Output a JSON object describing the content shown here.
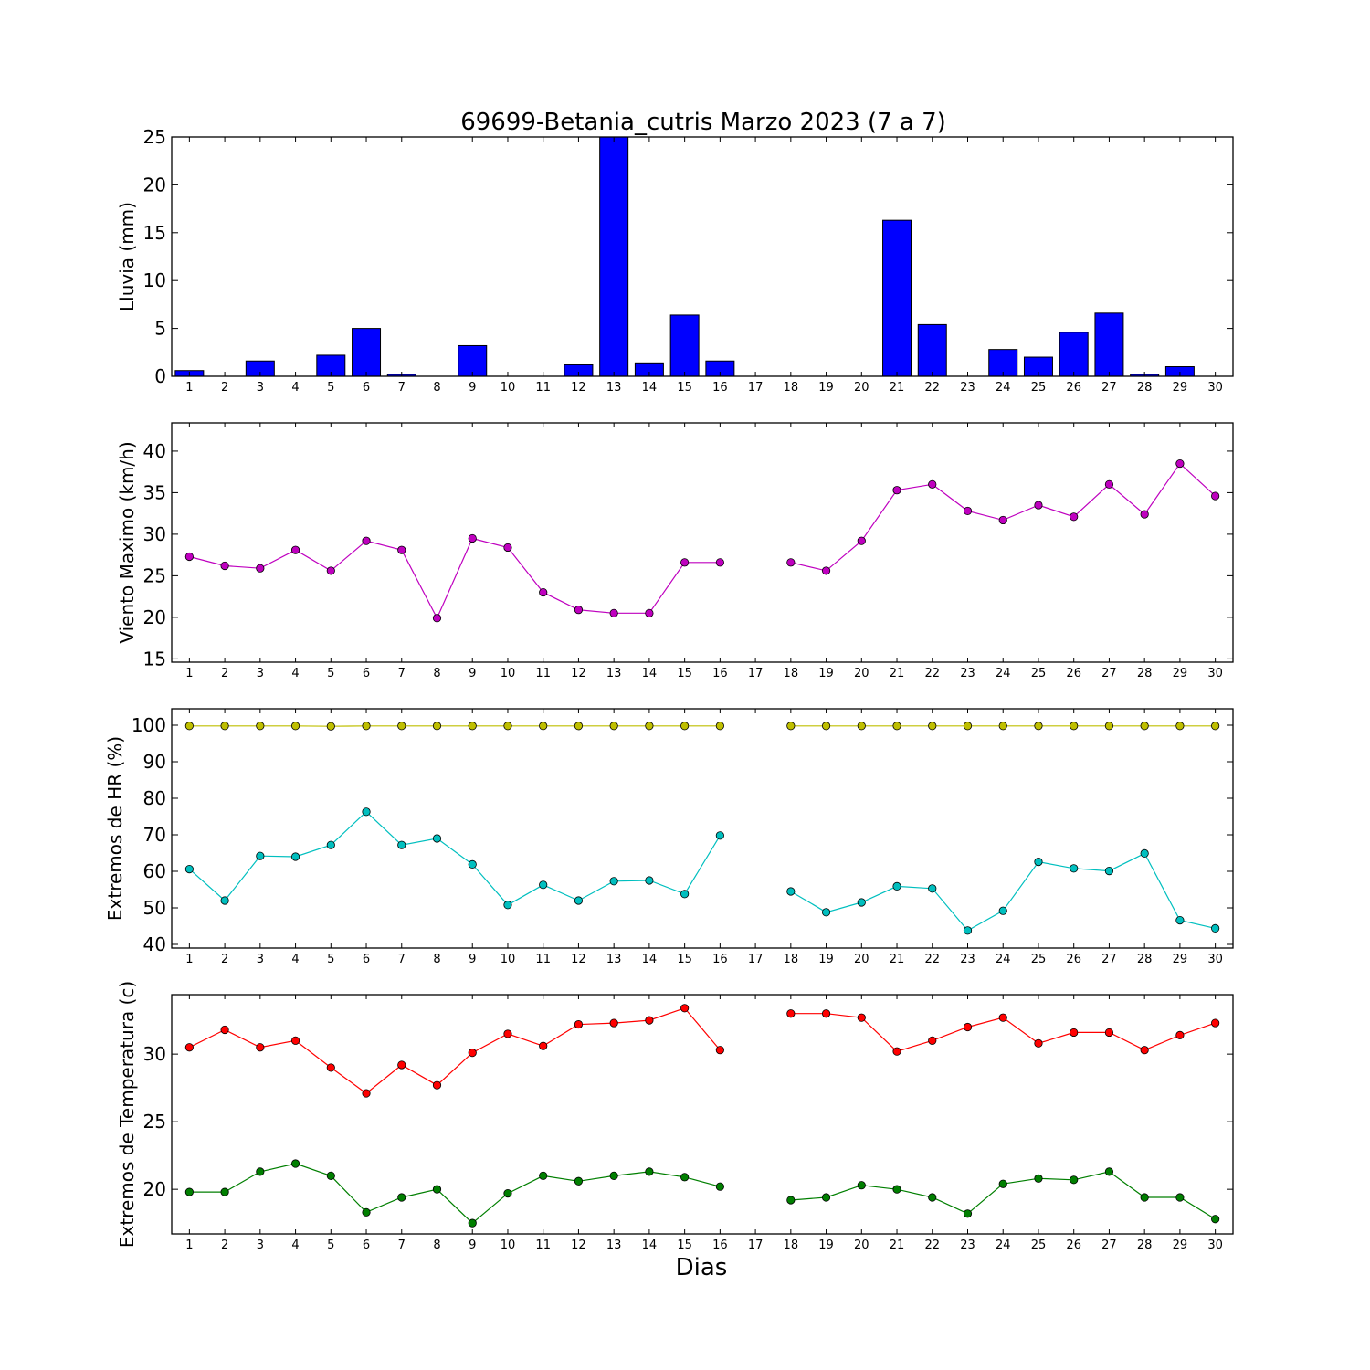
{
  "figure": {
    "title": "69699-Betania_cutris Marzo 2023  (7 a 7)",
    "xlabel": "Dias"
  },
  "chart_data": [
    {
      "type": "bar",
      "ylabel": "Lluvia (mm)",
      "ylim": [
        0,
        25
      ],
      "yticks": [
        0,
        5,
        10,
        15,
        20,
        25
      ],
      "x": [
        1,
        2,
        3,
        4,
        5,
        6,
        7,
        8,
        9,
        10,
        11,
        12,
        13,
        14,
        15,
        16,
        17,
        18,
        19,
        20,
        21,
        22,
        23,
        24,
        25,
        26,
        27,
        28,
        29,
        30
      ],
      "series": [
        {
          "color": "#0000ff",
          "values": [
            0.6,
            0,
            1.6,
            0,
            2.2,
            5.0,
            0.2,
            0,
            3.2,
            0,
            0,
            1.2,
            25.0,
            1.4,
            6.4,
            1.6,
            0,
            0,
            0,
            0,
            16.3,
            5.4,
            0,
            2.8,
            2.0,
            4.6,
            6.6,
            0.2,
            1.0,
            0
          ]
        }
      ]
    },
    {
      "type": "line",
      "ylabel": "Viento Maximo (km/h)",
      "ylim": [
        14.6,
        43.4
      ],
      "yticks": [
        15,
        20,
        25,
        30,
        35,
        40
      ],
      "x": [
        1,
        2,
        3,
        4,
        5,
        6,
        7,
        8,
        9,
        10,
        11,
        12,
        13,
        14,
        15,
        16,
        17,
        18,
        19,
        20,
        21,
        22,
        23,
        24,
        25,
        26,
        27,
        28,
        29,
        30
      ],
      "series": [
        {
          "color": "#bf00bf",
          "values": [
            27.3,
            26.2,
            25.9,
            28.1,
            25.6,
            29.2,
            28.1,
            19.9,
            29.5,
            28.4,
            23.0,
            20.9,
            20.5,
            20.5,
            26.6,
            26.6,
            null,
            26.6,
            25.6,
            29.2,
            35.3,
            36.0,
            32.8,
            31.7,
            33.5,
            32.1,
            36.0,
            32.4,
            38.5,
            34.6
          ]
        }
      ]
    },
    {
      "type": "line",
      "ylabel": "Extremos de HR (%)",
      "ylim": [
        39,
        104.5
      ],
      "yticks": [
        40,
        50,
        60,
        70,
        80,
        90,
        100
      ],
      "x": [
        1,
        2,
        3,
        4,
        5,
        6,
        7,
        8,
        9,
        10,
        11,
        12,
        13,
        14,
        15,
        16,
        17,
        18,
        19,
        20,
        21,
        22,
        23,
        24,
        25,
        26,
        27,
        28,
        29,
        30
      ],
      "series": [
        {
          "color": "#bfbf00",
          "values": [
            99.8,
            99.8,
            99.8,
            99.8,
            99.7,
            99.8,
            99.8,
            99.8,
            99.8,
            99.8,
            99.8,
            99.8,
            99.8,
            99.8,
            99.8,
            99.8,
            null,
            99.8,
            99.8,
            99.8,
            99.8,
            99.8,
            99.8,
            99.8,
            99.8,
            99.8,
            99.8,
            99.8,
            99.8,
            99.8
          ]
        },
        {
          "color": "#00bfbf",
          "values": [
            60.6,
            52.0,
            64.2,
            64.0,
            67.2,
            76.3,
            67.2,
            69.0,
            61.9,
            50.8,
            56.3,
            52.0,
            57.3,
            57.5,
            53.8,
            69.8,
            null,
            54.5,
            48.8,
            51.5,
            55.9,
            55.3,
            43.8,
            49.2,
            62.6,
            60.8,
            60.1,
            64.9,
            46.6,
            44.4
          ]
        }
      ]
    },
    {
      "type": "line",
      "ylabel": "Extremos de Temperatura (c)",
      "ylim": [
        16.7,
        34.4
      ],
      "yticks": [
        20,
        25,
        30
      ],
      "x": [
        1,
        2,
        3,
        4,
        5,
        6,
        7,
        8,
        9,
        10,
        11,
        12,
        13,
        14,
        15,
        16,
        17,
        18,
        19,
        20,
        21,
        22,
        23,
        24,
        25,
        26,
        27,
        28,
        29,
        30
      ],
      "series": [
        {
          "color": "#ff0000",
          "values": [
            30.5,
            31.8,
            30.5,
            31.0,
            29.0,
            27.1,
            29.2,
            27.7,
            30.1,
            31.5,
            30.6,
            32.2,
            32.3,
            32.5,
            33.4,
            30.3,
            null,
            33.0,
            33.0,
            32.7,
            30.2,
            31.0,
            32.0,
            32.7,
            30.8,
            31.6,
            31.6,
            30.3,
            31.4,
            32.3
          ]
        },
        {
          "color": "#007f00",
          "values": [
            19.8,
            19.8,
            21.3,
            21.9,
            21.0,
            18.3,
            19.4,
            20.0,
            17.5,
            19.7,
            21.0,
            20.6,
            21.0,
            21.3,
            20.9,
            20.2,
            null,
            19.2,
            19.4,
            20.3,
            20.0,
            19.4,
            18.2,
            20.4,
            20.8,
            20.7,
            21.3,
            19.4,
            19.4,
            17.8
          ]
        }
      ]
    }
  ]
}
